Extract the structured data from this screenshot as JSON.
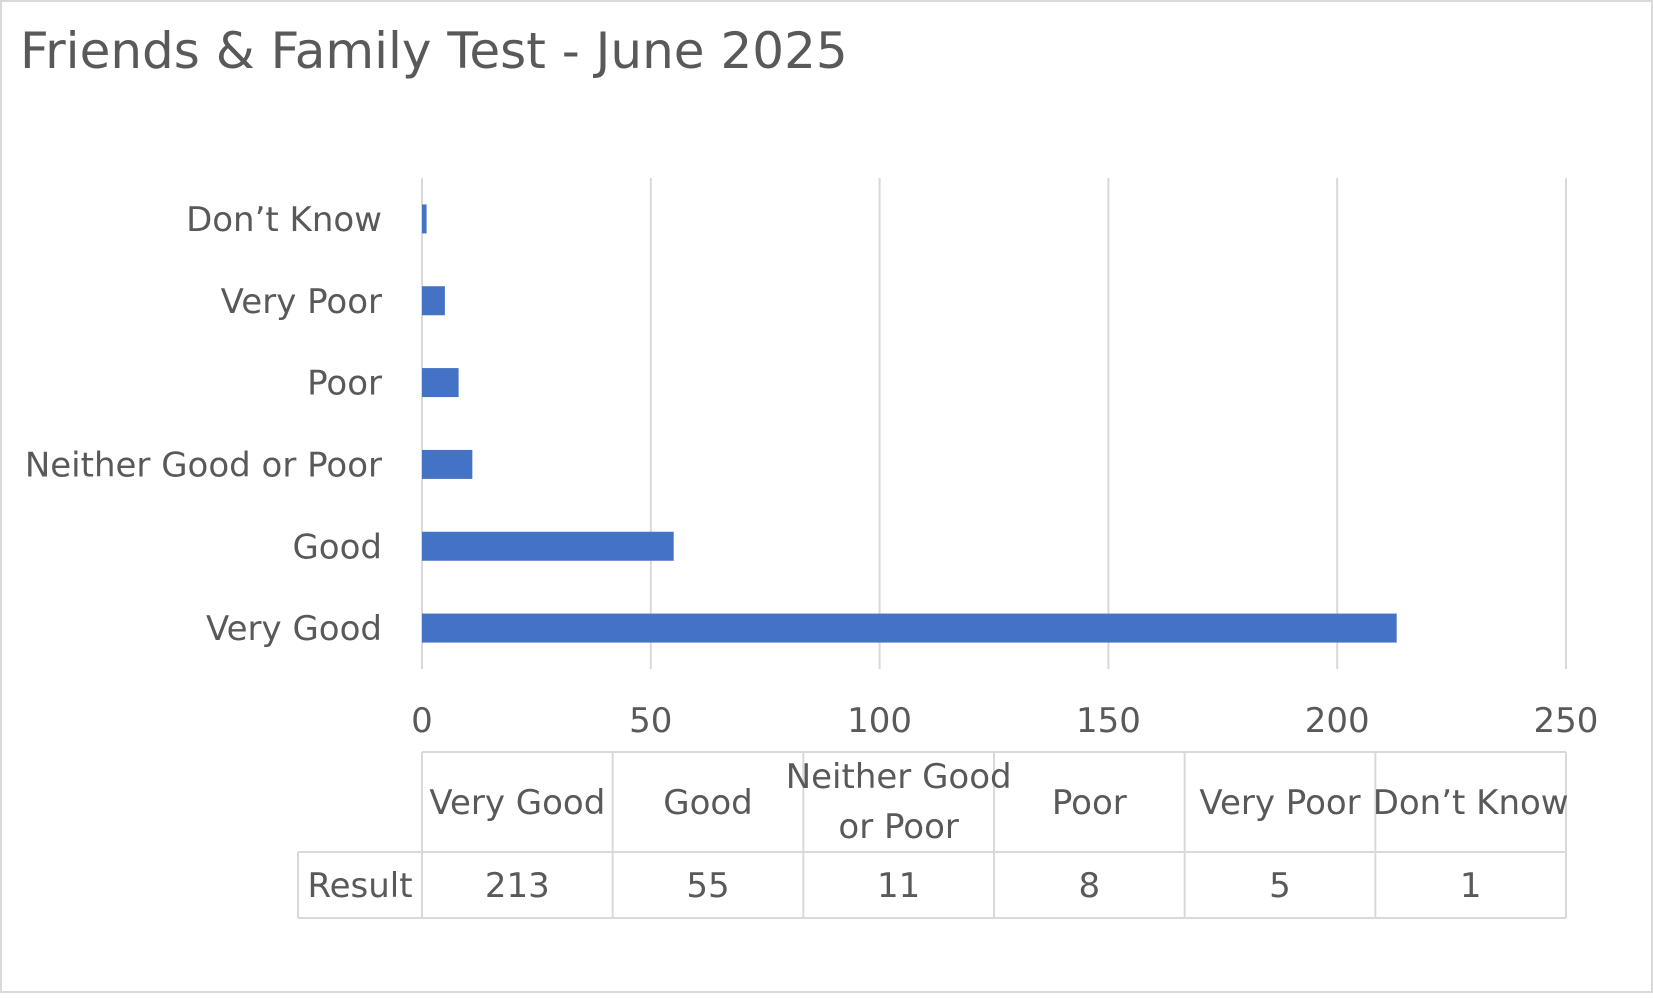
{
  "chart_data": {
    "type": "bar",
    "orientation": "horizontal",
    "title": "Friends & Family Test - June 2025",
    "xlabel": "",
    "ylabel": "",
    "categories": [
      "Very Good",
      "Good",
      "Neither Good or Poor",
      "Poor",
      "Very Poor",
      "Don’t Know"
    ],
    "table_categories": [
      [
        "Very Good"
      ],
      [
        "Good"
      ],
      [
        "Neither Good",
        "or Poor"
      ],
      [
        "Poor"
      ],
      [
        "Very Poor"
      ],
      [
        "Don’t Know"
      ]
    ],
    "series": [
      {
        "name": "Result",
        "values": [
          213,
          55,
          11,
          8,
          5,
          1
        ]
      }
    ],
    "xlim": [
      0,
      250
    ],
    "xticks": [
      0,
      50,
      100,
      150,
      200,
      250
    ],
    "grid": true,
    "legend": "none",
    "data_table": true,
    "colors": {
      "bar": "#4472C4",
      "grid": "#D9D9D9",
      "text": "#595959",
      "border": "#D9D9D9"
    }
  }
}
